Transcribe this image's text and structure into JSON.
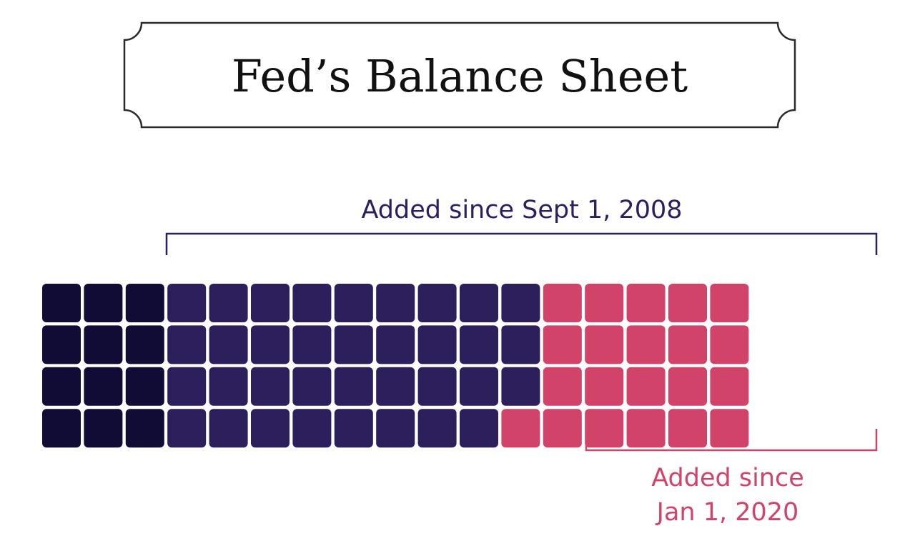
{
  "chart_data": {
    "type": "waffle",
    "title": "Fed’s Balance Sheet",
    "grid": {
      "columns": 20,
      "rows": 4
    },
    "series": [
      {
        "units": 12,
        "color": "#100c36"
      },
      {
        "name": "Added since Sept 1, 2008",
        "units": 35,
        "color": "#2d1e5c"
      },
      {
        "name": "Added since Jan 1, 2020",
        "units": 21,
        "color": "#d14368"
      }
    ],
    "annotations": [
      {
        "text": "Added since Sept 1, 2008",
        "color": "#2d1e5c"
      },
      {
        "lines": [
          "Added since",
          "Jan 1, 2020"
        ],
        "color": "#d14368"
      }
    ]
  }
}
